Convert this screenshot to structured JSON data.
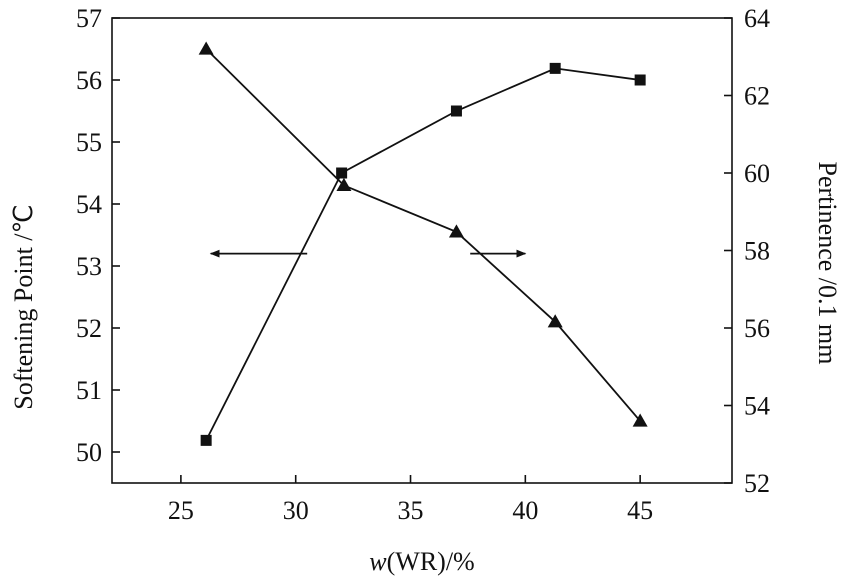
{
  "chart_data": {
    "type": "line",
    "xlabel_italic": "w",
    "xlabel_rest": "(WR)/%",
    "ylabel_left": "Softening Point /℃",
    "ylabel_right": "Pertinence /0.1 mm",
    "xlim": [
      22,
      49
    ],
    "ylim_left": [
      49.5,
      57
    ],
    "ylim_right": [
      52,
      64
    ],
    "x_ticks": [
      25,
      30,
      35,
      40,
      45
    ],
    "y_left_ticks": [
      50,
      51,
      52,
      53,
      54,
      55,
      56,
      57
    ],
    "y_right_ticks": [
      52,
      54,
      56,
      58,
      60,
      62,
      64
    ],
    "grid": false,
    "series": [
      {
        "axis": "left",
        "marker": "triangle",
        "x": [
          26.1,
          32.1,
          37.0,
          41.3,
          45.0
        ],
        "values": [
          56.5,
          54.3,
          53.55,
          52.1,
          50.5
        ]
      },
      {
        "axis": "right",
        "marker": "square",
        "x": [
          26.1,
          32.0,
          37.0,
          41.3,
          45.0
        ],
        "values": [
          53.1,
          60.0,
          61.6,
          62.7,
          62.4
        ]
      }
    ],
    "annotations": [
      {
        "type": "arrow",
        "direction": "left",
        "x_from": 30.5,
        "x_to": 26.3,
        "y_left": 53.2
      },
      {
        "type": "arrow",
        "direction": "right",
        "x_from": 37.6,
        "x_to": 40.0,
        "y_left": 53.2
      }
    ]
  }
}
